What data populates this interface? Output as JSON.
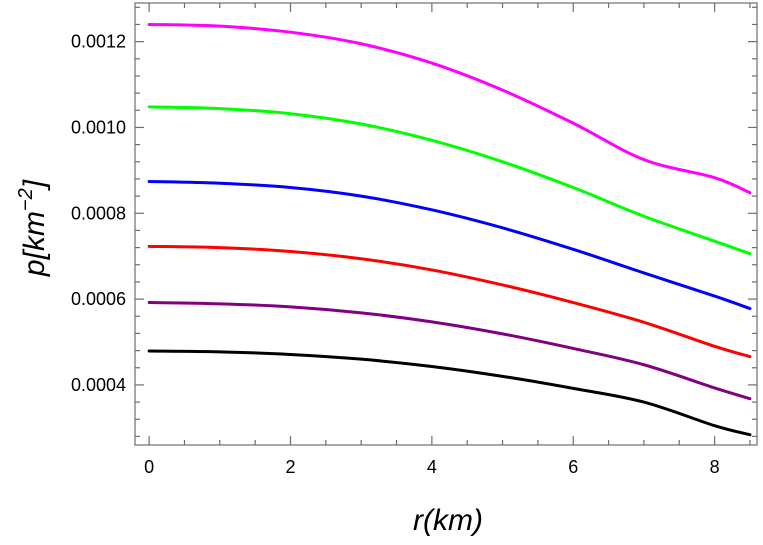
{
  "chart_data": {
    "type": "line",
    "xlabel": "r(km)",
    "ylabel": {
      "base": "p[km",
      "exponent": "−2",
      "close": "]"
    },
    "xlim": [
      -0.2,
      8.6
    ],
    "ylim": [
      0.00026,
      0.00129
    ],
    "grid": false,
    "x_ticks": [
      {
        "value": 0,
        "label": "0"
      },
      {
        "value": 2,
        "label": "2"
      },
      {
        "value": 4,
        "label": "4"
      },
      {
        "value": 6,
        "label": "6"
      },
      {
        "value": 8,
        "label": "8"
      }
    ],
    "y_ticks": [
      {
        "value": 0.0004,
        "label": "0.0004"
      },
      {
        "value": 0.0006,
        "label": "0.0006"
      },
      {
        "value": 0.0008,
        "label": "0.0008"
      },
      {
        "value": 0.001,
        "label": "0.0010"
      },
      {
        "value": 0.0012,
        "label": "0.0012"
      }
    ],
    "series": [
      {
        "color": "#ff00ff",
        "x": [
          0,
          1,
          2,
          3,
          4,
          5,
          6,
          7,
          8,
          8.5
        ],
        "y": [
          0.00124,
          0.001236,
          0.001222,
          0.001195,
          0.00115,
          0.001087,
          0.00101,
          0.000925,
          0.000883,
          0.000848
        ]
      },
      {
        "color": "#00ff00",
        "x": [
          0,
          1,
          2,
          3,
          4,
          5,
          6,
          7,
          8,
          8.5
        ],
        "y": [
          0.001048,
          0.001044,
          0.001032,
          0.001008,
          0.00097,
          0.00092,
          0.00086,
          0.000793,
          0.000735,
          0.000706
        ]
      },
      {
        "color": "#0000ff",
        "x": [
          0,
          1,
          2,
          3,
          4,
          5,
          6,
          7,
          8,
          8.5
        ],
        "y": [
          0.000874,
          0.00087,
          0.00086,
          0.00084,
          0.000808,
          0.000766,
          0.000716,
          0.000661,
          0.000607,
          0.000578
        ]
      },
      {
        "color": "#ff0000",
        "x": [
          0,
          1,
          2,
          3,
          4,
          5,
          6,
          7,
          8,
          8.5
        ],
        "y": [
          0.000723,
          0.00072,
          0.000711,
          0.000694,
          0.000668,
          0.000633,
          0.000592,
          0.000546,
          0.00049,
          0.000466
        ]
      },
      {
        "color": "#800080",
        "x": [
          0,
          1,
          2,
          3,
          4,
          5,
          6,
          7,
          8,
          8.5
        ],
        "y": [
          0.000592,
          0.000589,
          0.000582,
          0.000568,
          0.000547,
          0.000519,
          0.000485,
          0.000447,
          0.000393,
          0.000368
        ]
      },
      {
        "color": "#000000",
        "x": [
          0,
          1,
          2,
          3,
          4,
          5,
          6,
          7,
          8,
          8.5
        ],
        "y": [
          0.000479,
          0.000477,
          0.000471,
          0.00046,
          0.000443,
          0.00042,
          0.000392,
          0.00036,
          0.000305,
          0.000284
        ]
      }
    ]
  }
}
